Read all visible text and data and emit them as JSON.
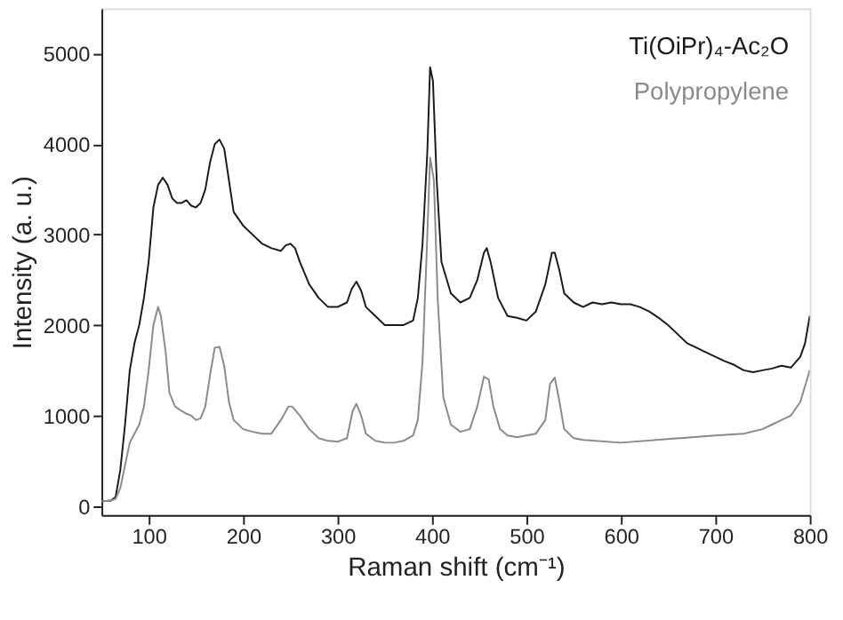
{
  "chart_data": {
    "type": "line",
    "xlabel": "Raman shift (cm⁻¹)",
    "ylabel": "Intensity (a. u.)",
    "xlim": [
      50,
      800
    ],
    "xticks": [
      100,
      200,
      300,
      400,
      500,
      600,
      700,
      800
    ],
    "ylim": [
      -100,
      5500
    ],
    "yticks": [
      0,
      1000,
      2000,
      3000,
      4000,
      5000
    ],
    "grid": false,
    "legend": "top right",
    "marker": "none",
    "line_style": "solid",
    "series": [
      {
        "name": "Ti(OiPr)₄-Ac₂O",
        "color": "#1a1a1a",
        "x": [
          50,
          60,
          65,
          70,
          75,
          80,
          85,
          90,
          95,
          100,
          105,
          110,
          115,
          120,
          125,
          130,
          135,
          140,
          145,
          150,
          155,
          160,
          165,
          170,
          175,
          180,
          185,
          190,
          200,
          210,
          220,
          230,
          240,
          245,
          250,
          255,
          260,
          270,
          280,
          290,
          300,
          310,
          315,
          320,
          325,
          330,
          340,
          350,
          360,
          370,
          380,
          385,
          390,
          395,
          398,
          401,
          405,
          410,
          420,
          430,
          440,
          448,
          455,
          458,
          462,
          470,
          480,
          490,
          500,
          510,
          520,
          527,
          530,
          535,
          540,
          550,
          560,
          570,
          580,
          590,
          600,
          610,
          620,
          630,
          640,
          650,
          660,
          670,
          680,
          690,
          700,
          710,
          720,
          730,
          740,
          750,
          760,
          770,
          780,
          790,
          795,
          800
        ],
        "values": [
          50,
          60,
          100,
          400,
          900,
          1500,
          1800,
          2000,
          2300,
          2700,
          3300,
          3550,
          3630,
          3550,
          3400,
          3350,
          3350,
          3380,
          3320,
          3300,
          3350,
          3500,
          3800,
          4000,
          4050,
          3950,
          3600,
          3250,
          3100,
          3000,
          2900,
          2850,
          2820,
          2880,
          2900,
          2850,
          2700,
          2450,
          2300,
          2200,
          2200,
          2250,
          2400,
          2480,
          2380,
          2200,
          2100,
          2000,
          2000,
          2000,
          2050,
          2300,
          2900,
          3900,
          4850,
          4700,
          3600,
          2700,
          2350,
          2250,
          2300,
          2500,
          2800,
          2850,
          2700,
          2300,
          2100,
          2080,
          2050,
          2150,
          2450,
          2800,
          2800,
          2600,
          2350,
          2250,
          2200,
          2250,
          2230,
          2250,
          2230,
          2230,
          2200,
          2150,
          2080,
          2000,
          1900,
          1800,
          1750,
          1700,
          1650,
          1600,
          1560,
          1500,
          1480,
          1500,
          1520,
          1550,
          1530,
          1650,
          1800,
          2100
        ]
      },
      {
        "name": "Polypropylene",
        "color": "#8a8a8a",
        "x": [
          50,
          60,
          65,
          70,
          75,
          80,
          85,
          90,
          95,
          100,
          105,
          110,
          113,
          118,
          122,
          128,
          135,
          140,
          145,
          150,
          155,
          160,
          165,
          170,
          175,
          180,
          185,
          190,
          200,
          210,
          220,
          230,
          240,
          248,
          252,
          260,
          270,
          280,
          290,
          300,
          310,
          316,
          320,
          325,
          330,
          340,
          350,
          360,
          370,
          380,
          385,
          390,
          394,
          398,
          402,
          406,
          412,
          420,
          430,
          440,
          448,
          455,
          460,
          465,
          472,
          480,
          490,
          500,
          510,
          520,
          525,
          530,
          535,
          540,
          550,
          560,
          600,
          650,
          700,
          730,
          750,
          760,
          770,
          780,
          790,
          800
        ],
        "values": [
          50,
          60,
          80,
          200,
          450,
          700,
          800,
          900,
          1100,
          1500,
          2000,
          2200,
          2100,
          1700,
          1250,
          1100,
          1050,
          1020,
          1000,
          950,
          970,
          1100,
          1450,
          1750,
          1760,
          1550,
          1150,
          950,
          850,
          820,
          800,
          800,
          950,
          1100,
          1100,
          1000,
          850,
          750,
          720,
          710,
          750,
          1050,
          1130,
          1000,
          800,
          720,
          700,
          700,
          720,
          780,
          950,
          1600,
          2700,
          3850,
          3600,
          2300,
          1200,
          900,
          820,
          850,
          1100,
          1430,
          1400,
          1100,
          850,
          780,
          760,
          780,
          800,
          950,
          1350,
          1420,
          1150,
          850,
          750,
          730,
          700,
          740,
          780,
          800,
          850,
          900,
          950,
          1000,
          1150,
          1500
        ]
      }
    ]
  }
}
